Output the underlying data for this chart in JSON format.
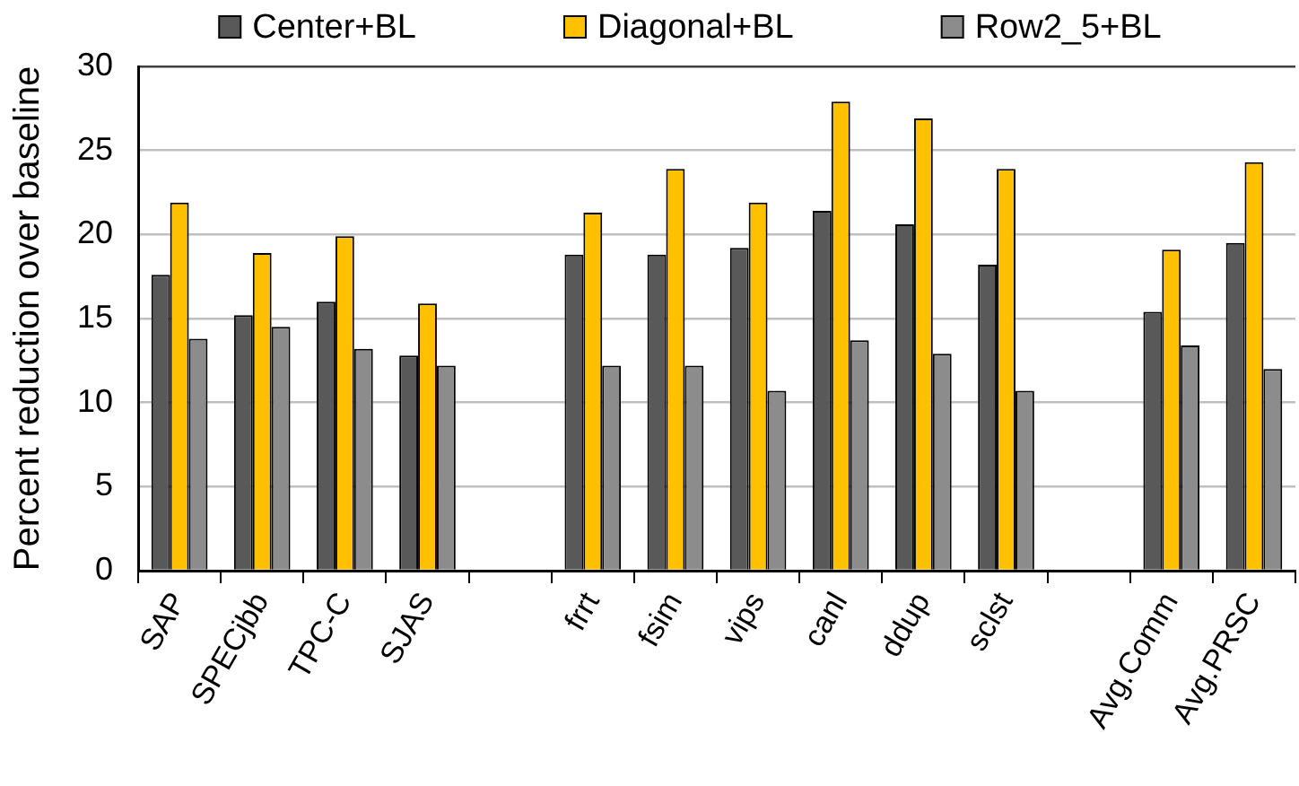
{
  "chart_data": {
    "type": "bar",
    "ylabel": "Percent reduction over baseline",
    "categories": [
      "SAP",
      "SPECjbb",
      "TPC-C",
      "SJAS",
      null,
      "frrt",
      "fsim",
      "vips",
      "canl",
      "ddup",
      "sclst",
      null,
      "Avg.Comm",
      "Avg.PRSC"
    ],
    "series": [
      {
        "name": "Center+BL",
        "color": "#595959",
        "values": [
          17.6,
          15.2,
          16.0,
          12.8,
          null,
          18.8,
          18.8,
          19.2,
          21.4,
          20.6,
          18.2,
          null,
          15.4,
          19.5
        ]
      },
      {
        "name": "Diagonal+BL",
        "color": "#ffc000",
        "values": [
          21.9,
          18.9,
          19.9,
          15.9,
          null,
          21.3,
          23.9,
          21.9,
          27.9,
          26.9,
          23.9,
          null,
          19.1,
          24.3
        ]
      },
      {
        "name": "Row2_5+BL",
        "color": "#8c8c8c",
        "values": [
          13.8,
          14.5,
          13.2,
          12.2,
          null,
          12.2,
          12.2,
          10.7,
          13.7,
          12.9,
          10.7,
          null,
          13.4,
          12.0
        ]
      }
    ],
    "ylim": [
      0,
      30
    ],
    "yticks": [
      0,
      5,
      10,
      15,
      20,
      25,
      30
    ],
    "grid": "y",
    "legend": "top"
  }
}
